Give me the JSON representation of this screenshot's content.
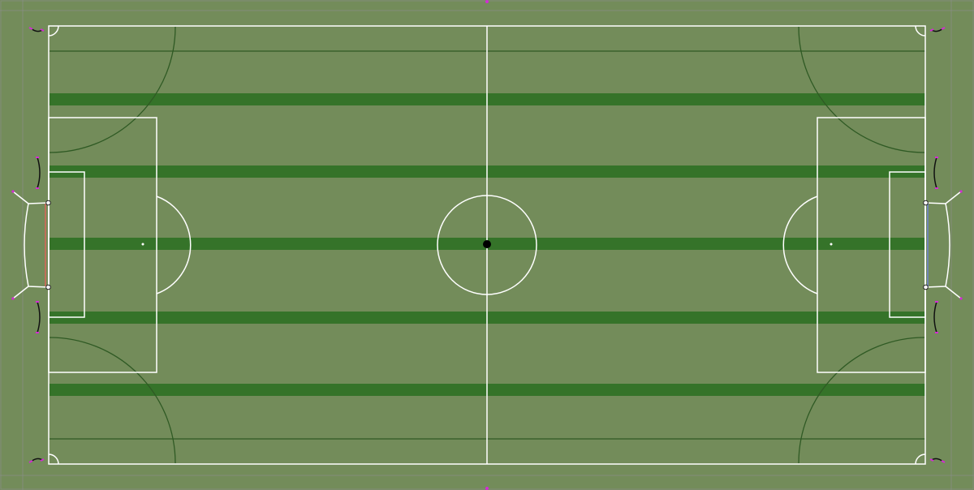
{
  "pitch": {
    "grass_color": "#738c5a",
    "stripe_color": "#357329",
    "line_color": "#ffffff",
    "arc_color": "#2f5a24",
    "corner_marker_color": "#d42bd4",
    "left_goal_line_color": "#c0705a",
    "right_goal_line_color": "#6f84b5",
    "center_spot_color": "#000000"
  }
}
